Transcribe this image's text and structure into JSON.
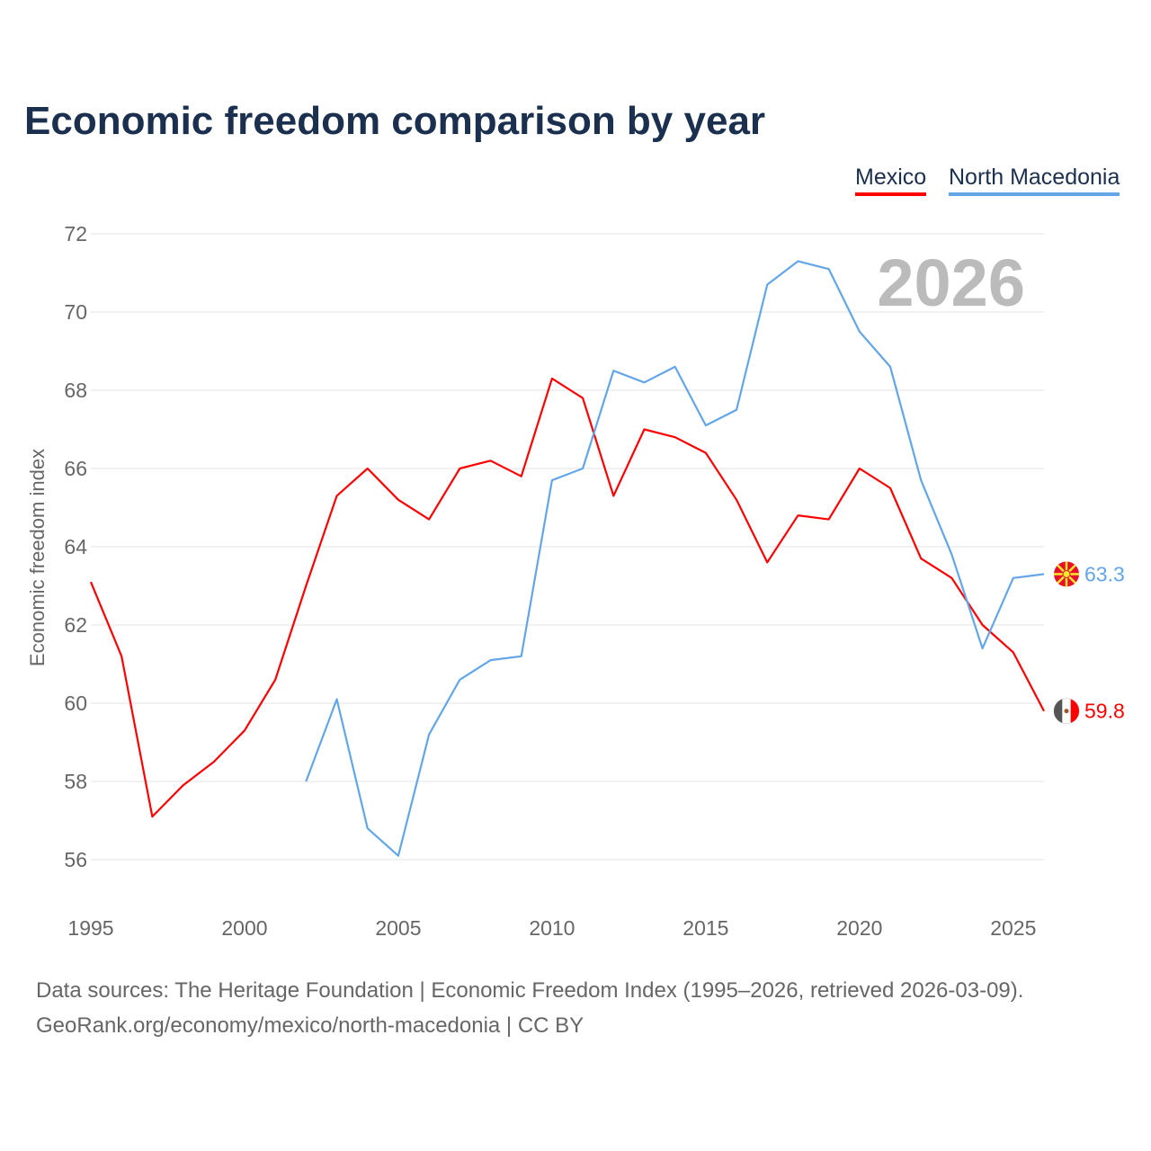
{
  "chart_data": {
    "type": "line",
    "title": "Economic freedom comparison by year",
    "xlabel": "",
    "ylabel": "Economic freedom index",
    "xlim": [
      1995,
      2026
    ],
    "ylim": [
      55,
      72
    ],
    "x_ticks": [
      1995,
      2000,
      2005,
      2010,
      2015,
      2020,
      2025
    ],
    "y_ticks": [
      56,
      58,
      60,
      62,
      64,
      66,
      68,
      70,
      72
    ],
    "grid": true,
    "legend_position": "top-right",
    "year_watermark": "2026",
    "series": [
      {
        "name": "Mexico",
        "color": "#ff0000",
        "end_label": "59.8",
        "x": [
          1995,
          1996,
          1997,
          1998,
          1999,
          2000,
          2001,
          2002,
          2003,
          2004,
          2005,
          2006,
          2007,
          2008,
          2009,
          2010,
          2011,
          2012,
          2013,
          2014,
          2015,
          2016,
          2017,
          2018,
          2019,
          2020,
          2021,
          2022,
          2023,
          2024,
          2025,
          2026
        ],
        "values": [
          63.1,
          61.2,
          57.1,
          57.9,
          58.5,
          59.3,
          60.6,
          63.0,
          65.3,
          66.0,
          65.2,
          64.7,
          66.0,
          66.2,
          65.8,
          68.3,
          67.8,
          65.3,
          67.0,
          66.8,
          66.4,
          65.2,
          63.6,
          64.8,
          64.7,
          66.0,
          65.5,
          63.7,
          63.2,
          62.0,
          61.3,
          59.8
        ]
      },
      {
        "name": "North Macedonia",
        "color": "#63a6e8",
        "end_label": "63.3",
        "x": [
          2002,
          2003,
          2004,
          2005,
          2006,
          2007,
          2008,
          2009,
          2010,
          2011,
          2012,
          2013,
          2014,
          2015,
          2016,
          2017,
          2018,
          2019,
          2020,
          2021,
          2022,
          2023,
          2024,
          2025,
          2026
        ],
        "values": [
          58.0,
          60.1,
          56.8,
          56.1,
          59.2,
          60.6,
          61.1,
          61.2,
          65.7,
          66.0,
          68.5,
          68.2,
          68.6,
          67.1,
          67.5,
          70.7,
          71.3,
          71.1,
          69.5,
          68.6,
          65.7,
          63.8,
          61.4,
          63.2,
          63.3
        ]
      }
    ]
  },
  "footer": {
    "line1": "Data sources: The Heritage Foundation | Economic Freedom Index (1995–2026, retrieved 2026-03-09).",
    "line2": "GeoRank.org/economy/mexico/north-macedonia | CC BY"
  }
}
